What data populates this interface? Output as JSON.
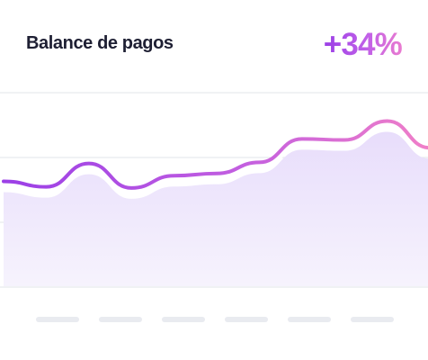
{
  "card": {
    "title": "Balance de pagos",
    "change": "+34%"
  },
  "colors": {
    "title": "#1e1f33",
    "line_start": "#9b3fe6",
    "line_end": "#f07fc8",
    "area_fill": "#ece4fb",
    "grid": "#e8e9ee",
    "tick_placeholder": "#e9ebf0"
  },
  "chart_data": {
    "type": "area",
    "title": "",
    "xlabel": "",
    "ylabel": "",
    "grid": true,
    "tick_labels_visible": false,
    "ylim": [
      0,
      1
    ],
    "x": [
      0,
      1,
      2,
      3,
      4,
      5,
      6,
      7,
      8,
      9,
      10
    ],
    "series": [
      {
        "values": [
          0.44,
          0.39,
          0.6,
          0.38,
          0.49,
          0.51,
          0.61,
          0.82,
          0.81,
          0.98,
          0.74
        ]
      }
    ]
  }
}
